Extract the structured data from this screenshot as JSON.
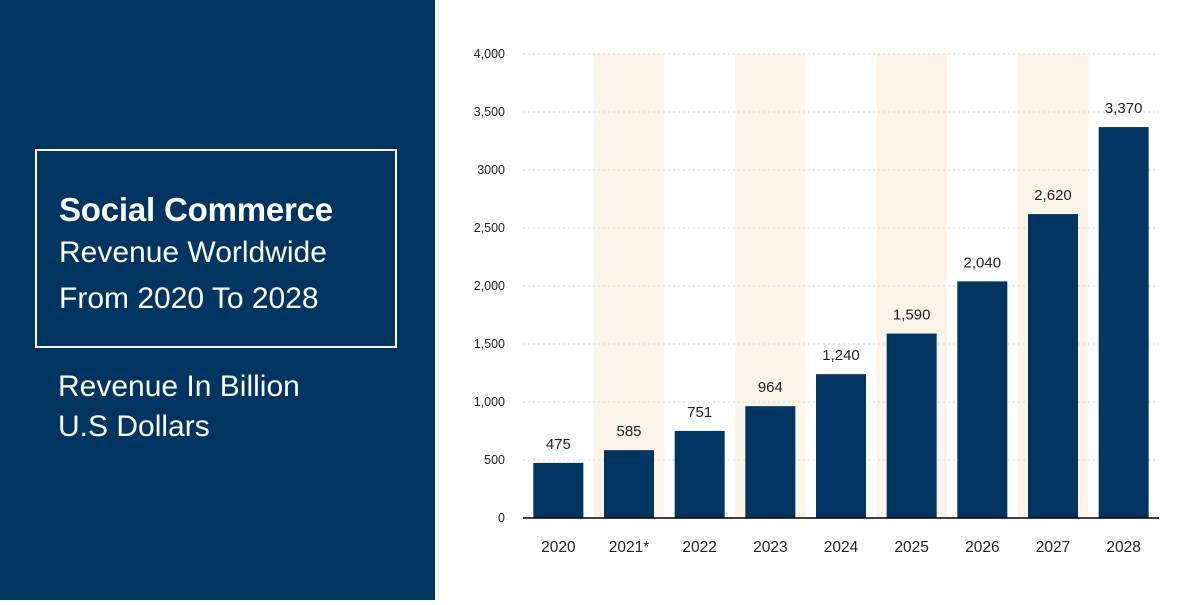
{
  "panel": {
    "title_bold": "Social Commerce",
    "title_line2": "Revenue Worldwide",
    "title_line3": "From 2020 To 2028",
    "unit_line1": "Revenue In Billion",
    "unit_line2": "U.S Dollars"
  },
  "colors": {
    "panel_bg": "#003461",
    "bar": "#003461",
    "band": "#fdf4e9",
    "grid": "#d9d9d9",
    "text": "#222222"
  },
  "chart_data": {
    "type": "bar",
    "categories": [
      "2020",
      "2021*",
      "2022",
      "2023",
      "2024",
      "2025",
      "2026",
      "2027",
      "2028"
    ],
    "values": [
      475,
      585,
      751,
      964,
      1240,
      1590,
      2040,
      2620,
      3370
    ],
    "value_labels": [
      "475",
      "585",
      "751",
      "964",
      "1,240",
      "1,590",
      "2,040",
      "2,620",
      "3,370"
    ],
    "ylim": [
      0,
      4000
    ],
    "yticks": [
      0,
      500,
      1000,
      1500,
      2000,
      2500,
      3000,
      3500,
      4000
    ],
    "ytick_labels": [
      "0",
      "500",
      "1,000",
      "1,500",
      "2,000",
      "2,500",
      "3000",
      "3,500",
      "4,000"
    ],
    "shaded_categories": [
      "2021*",
      "2023",
      "2025",
      "2027"
    ],
    "grid": true,
    "legend": "none"
  }
}
